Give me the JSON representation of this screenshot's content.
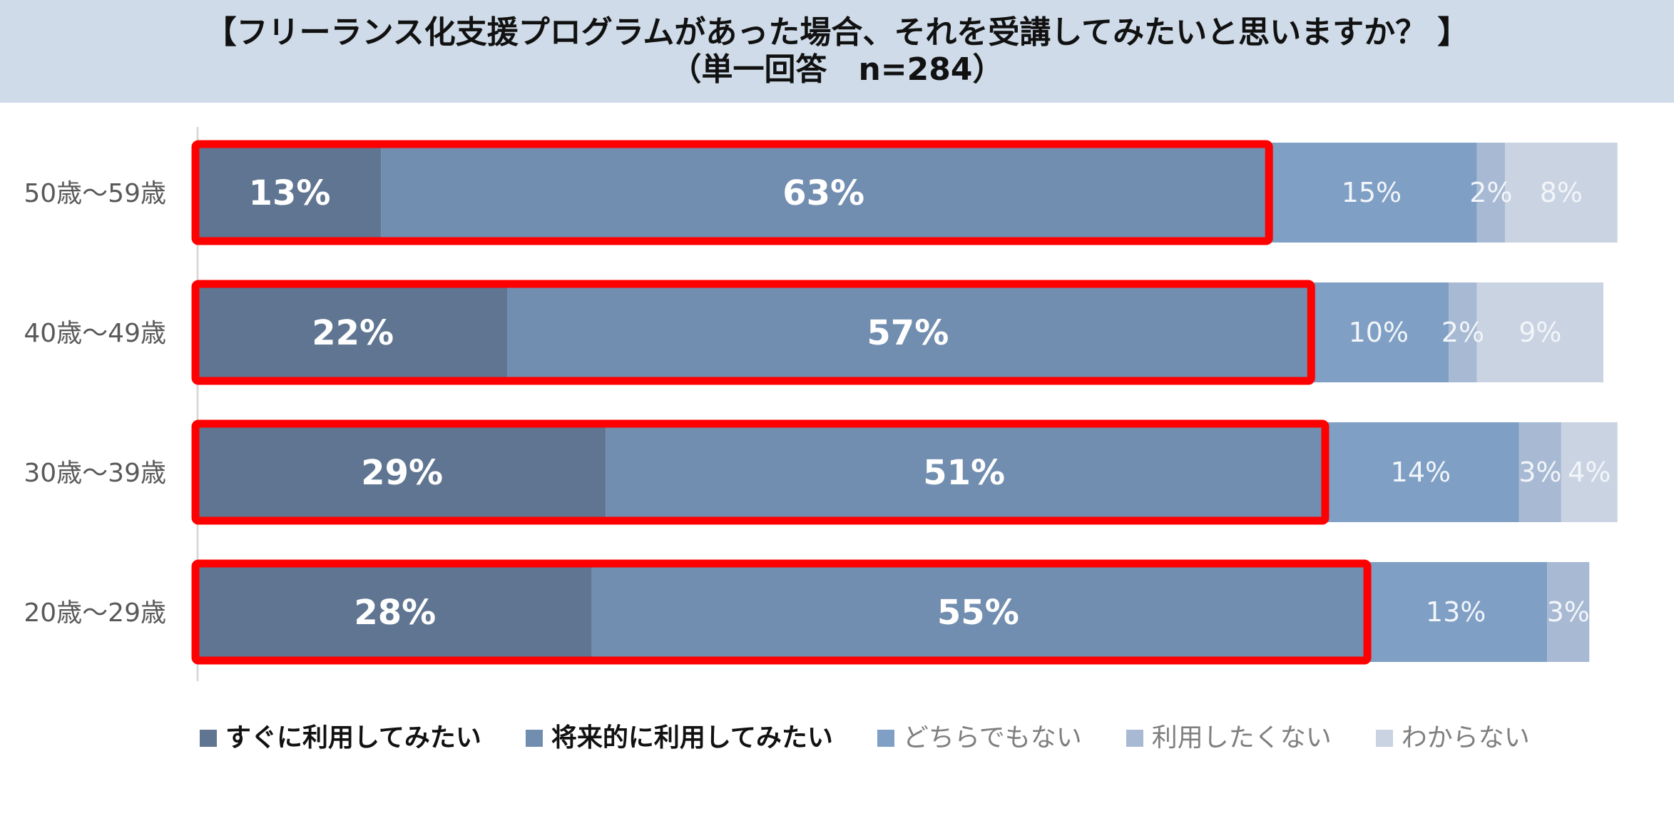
{
  "chart_data": {
    "type": "bar",
    "orientation": "horizontal",
    "stacked": true,
    "title_line1": "【フリーランス化支援プログラムがあった場合、それを受講してみたいと思いますか？ 】",
    "title_line2": "（単一回答　n=284）",
    "categories": [
      "50歳～59歳",
      "40歳～49歳",
      "30歳～39歳",
      "20歳～29歳"
    ],
    "series": [
      {
        "name": "すぐに利用してみたい",
        "values": [
          13,
          22,
          29,
          28
        ],
        "labels": [
          "13%",
          "22%",
          "29%",
          "28%"
        ],
        "color": "#5f7591",
        "label_color": "#ffffff",
        "label_bold": true
      },
      {
        "name": "将来的に利用してみたい",
        "values": [
          63,
          57,
          51,
          55
        ],
        "labels": [
          "63%",
          "57%",
          "51%",
          "55%"
        ],
        "color": "#718daf",
        "label_color": "#ffffff",
        "label_bold": true
      },
      {
        "name": "どちらでもない",
        "values": [
          15,
          10,
          14,
          13
        ],
        "labels": [
          "15%",
          "10%",
          "14%",
          "13%"
        ],
        "color": "#7f9fc5",
        "label_color": "#f2f5f9",
        "label_bold": false
      },
      {
        "name": "利用したくない",
        "values": [
          2,
          2,
          3,
          3
        ],
        "labels": [
          "2%",
          "2%",
          "3%",
          "3%"
        ],
        "color": "#a7b9d3",
        "label_color": "#f2f5f9",
        "label_bold": false
      },
      {
        "name": "わからない",
        "values": [
          8,
          9,
          4,
          0
        ],
        "labels": [
          "8%",
          "9%",
          "4%",
          ""
        ],
        "color": "#c9d3e2",
        "label_color": "#f2f5f9",
        "label_bold": false
      }
    ],
    "xlim": [
      0,
      100
    ],
    "highlight_series": [
      0,
      1
    ],
    "highlight_color": "#ff0000",
    "legend_position": "bottom",
    "grid": false
  },
  "colors": {
    "title_band": "#cfdbe8",
    "category_label": "#595959",
    "axis_line": "#d9d9d9"
  }
}
